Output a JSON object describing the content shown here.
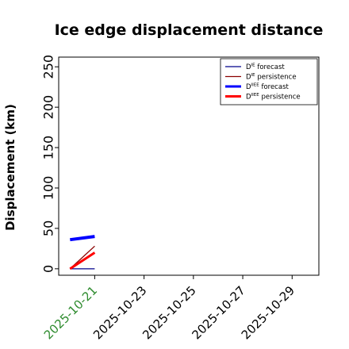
{
  "chart_data": {
    "type": "line",
    "title": "Ice edge displacement distance",
    "xlabel": "",
    "ylabel": "Displacement (km)",
    "xlim": [
      "2025-10-19T13:00",
      "2025-10-30T02:00"
    ],
    "ylim": [
      -8,
      262
    ],
    "yticks": [
      0,
      50,
      100,
      150,
      200,
      250
    ],
    "xticks": [
      {
        "date": "2025-10-21",
        "label": "2025-10-21",
        "color": "#2e8b2e"
      },
      {
        "date": "2025-10-23",
        "label": "2025-10-23",
        "color": "#000000"
      },
      {
        "date": "2025-10-25",
        "label": "2025-10-25",
        "color": "#000000"
      },
      {
        "date": "2025-10-27",
        "label": "2025-10-27",
        "color": "#000000"
      },
      {
        "date": "2025-10-29",
        "label": "2025-10-29",
        "color": "#000000"
      }
    ],
    "grid": false,
    "legend": {
      "placement": "top-right",
      "entries": [
        {
          "base": "D",
          "sup": "IE",
          "text": "forecast",
          "color": "#00008b",
          "weight": "thin"
        },
        {
          "base": "D",
          "sup": "IE",
          "text": "persistence",
          "color": "#8b0000",
          "weight": "thin"
        },
        {
          "base": "D",
          "sup": "IIEE",
          "text": "forecast",
          "color": "#0000ff",
          "weight": "thick"
        },
        {
          "base": "D",
          "sup": "IIEE",
          "text": "persistence",
          "color": "#ff0000",
          "weight": "thick"
        }
      ]
    },
    "series": [
      {
        "key": "die_forecast",
        "color": "#00008b",
        "width": 1.3,
        "x": [
          "2025-10-20T00:00",
          "2025-10-21T00:00"
        ],
        "y": [
          0,
          0
        ]
      },
      {
        "key": "die_persistence",
        "color": "#8b0000",
        "width": 1.3,
        "x": [
          "2025-10-20T00:00",
          "2025-10-21T00:00"
        ],
        "y": [
          0,
          28
        ]
      },
      {
        "key": "diiee_forecast",
        "color": "#0000ff",
        "width": 4,
        "x": [
          "2025-10-20T00:00",
          "2025-10-21T00:00"
        ],
        "y": [
          36,
          40
        ]
      },
      {
        "key": "diiee_persistence",
        "color": "#ff0000",
        "width": 3,
        "x": [
          "2025-10-20T00:00",
          "2025-10-21T00:00"
        ],
        "y": [
          0,
          20
        ]
      }
    ]
  }
}
